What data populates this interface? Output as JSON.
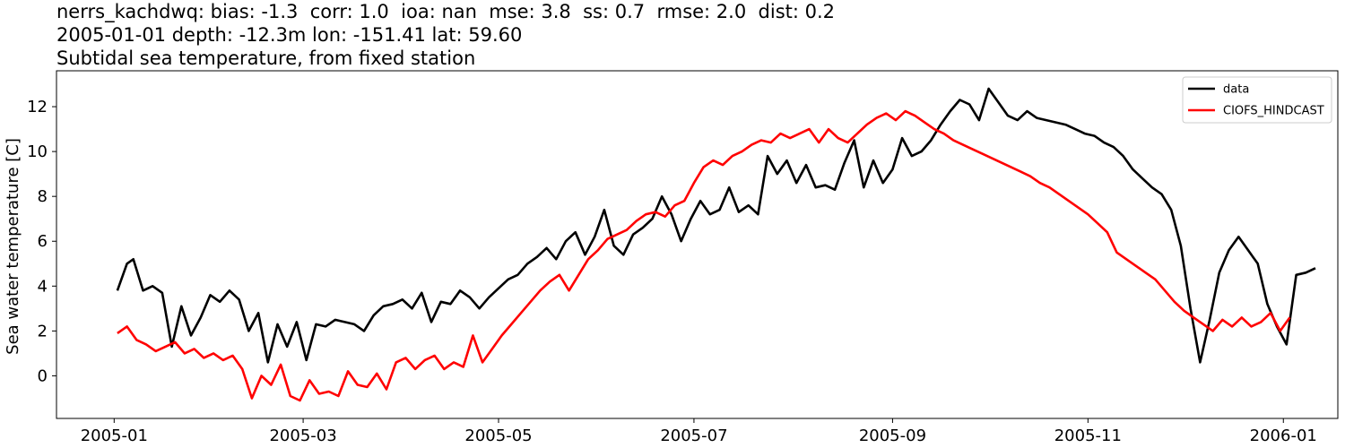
{
  "header": {
    "title_line1": "nerrs_kachdwq: bias: -1.3  corr: 1.0  ioa: nan  mse: 3.8  ss: 0.7  rmse: 2.0  dist: 0.2",
    "title_line2": "2005-01-01 depth: -12.3m lon: -151.41 lat: 59.60",
    "title_line3": "Subtidal sea temperature, from fixed station"
  },
  "chart_data": {
    "type": "line",
    "ylabel": "Sea water temperature [C]",
    "xlabel": "",
    "x_is_date": true,
    "xlim": [
      "2004-12-14",
      "2006-01-18"
    ],
    "ylim": [
      -1.9,
      13.6
    ],
    "xticks": [
      "2005-01-01",
      "2005-03-01",
      "2005-05-01",
      "2005-07-01",
      "2005-09-01",
      "2005-11-01",
      "2006-01-01"
    ],
    "xtick_labels": [
      "2005-01",
      "2005-03",
      "2005-05",
      "2005-07",
      "2005-09",
      "2005-11",
      "2006-01"
    ],
    "yticks": [
      0,
      2,
      4,
      6,
      8,
      10,
      12
    ],
    "grid": false,
    "legend_position": "top-right",
    "series": [
      {
        "name": "data",
        "color": "#000000",
        "points": [
          [
            "2005-01-02",
            3.8
          ],
          [
            "2005-01-05",
            5.0
          ],
          [
            "2005-01-07",
            5.2
          ],
          [
            "2005-01-10",
            3.8
          ],
          [
            "2005-01-13",
            4.0
          ],
          [
            "2005-01-16",
            3.7
          ],
          [
            "2005-01-19",
            1.3
          ],
          [
            "2005-01-22",
            3.1
          ],
          [
            "2005-01-25",
            1.8
          ],
          [
            "2005-01-28",
            2.6
          ],
          [
            "2005-01-31",
            3.6
          ],
          [
            "2005-02-03",
            3.3
          ],
          [
            "2005-02-06",
            3.8
          ],
          [
            "2005-02-09",
            3.4
          ],
          [
            "2005-02-12",
            2.0
          ],
          [
            "2005-02-15",
            2.8
          ],
          [
            "2005-02-18",
            0.6
          ],
          [
            "2005-02-21",
            2.3
          ],
          [
            "2005-02-24",
            1.3
          ],
          [
            "2005-02-27",
            2.4
          ],
          [
            "2005-03-02",
            0.7
          ],
          [
            "2005-03-05",
            2.3
          ],
          [
            "2005-03-08",
            2.2
          ],
          [
            "2005-03-11",
            2.5
          ],
          [
            "2005-03-14",
            2.4
          ],
          [
            "2005-03-17",
            2.3
          ],
          [
            "2005-03-20",
            2.0
          ],
          [
            "2005-03-23",
            2.7
          ],
          [
            "2005-03-26",
            3.1
          ],
          [
            "2005-03-29",
            3.2
          ],
          [
            "2005-04-01",
            3.4
          ],
          [
            "2005-04-04",
            3.0
          ],
          [
            "2005-04-07",
            3.7
          ],
          [
            "2005-04-10",
            2.4
          ],
          [
            "2005-04-13",
            3.3
          ],
          [
            "2005-04-16",
            3.2
          ],
          [
            "2005-04-19",
            3.8
          ],
          [
            "2005-04-22",
            3.5
          ],
          [
            "2005-04-25",
            3.0
          ],
          [
            "2005-04-28",
            3.5
          ],
          [
            "2005-05-01",
            3.9
          ],
          [
            "2005-05-04",
            4.3
          ],
          [
            "2005-05-07",
            4.5
          ],
          [
            "2005-05-10",
            5.0
          ],
          [
            "2005-05-13",
            5.3
          ],
          [
            "2005-05-16",
            5.7
          ],
          [
            "2005-05-19",
            5.2
          ],
          [
            "2005-05-22",
            6.0
          ],
          [
            "2005-05-25",
            6.4
          ],
          [
            "2005-05-28",
            5.4
          ],
          [
            "2005-05-31",
            6.2
          ],
          [
            "2005-06-03",
            7.4
          ],
          [
            "2005-06-06",
            5.8
          ],
          [
            "2005-06-09",
            5.4
          ],
          [
            "2005-06-12",
            6.3
          ],
          [
            "2005-06-15",
            6.6
          ],
          [
            "2005-06-18",
            7.0
          ],
          [
            "2005-06-21",
            8.0
          ],
          [
            "2005-06-24",
            7.2
          ],
          [
            "2005-06-27",
            6.0
          ],
          [
            "2005-06-30",
            7.0
          ],
          [
            "2005-07-03",
            7.8
          ],
          [
            "2005-07-06",
            7.2
          ],
          [
            "2005-07-09",
            7.4
          ],
          [
            "2005-07-12",
            8.4
          ],
          [
            "2005-07-15",
            7.3
          ],
          [
            "2005-07-18",
            7.6
          ],
          [
            "2005-07-21",
            7.2
          ],
          [
            "2005-07-24",
            9.8
          ],
          [
            "2005-07-27",
            9.0
          ],
          [
            "2005-07-30",
            9.6
          ],
          [
            "2005-08-02",
            8.6
          ],
          [
            "2005-08-05",
            9.4
          ],
          [
            "2005-08-08",
            8.4
          ],
          [
            "2005-08-11",
            8.5
          ],
          [
            "2005-08-14",
            8.3
          ],
          [
            "2005-08-17",
            9.5
          ],
          [
            "2005-08-20",
            10.5
          ],
          [
            "2005-08-23",
            8.4
          ],
          [
            "2005-08-26",
            9.6
          ],
          [
            "2005-08-29",
            8.6
          ],
          [
            "2005-09-01",
            9.2
          ],
          [
            "2005-09-04",
            10.6
          ],
          [
            "2005-09-07",
            9.8
          ],
          [
            "2005-09-10",
            10.0
          ],
          [
            "2005-09-13",
            10.5
          ],
          [
            "2005-09-16",
            11.2
          ],
          [
            "2005-09-19",
            11.8
          ],
          [
            "2005-09-22",
            12.3
          ],
          [
            "2005-09-25",
            12.1
          ],
          [
            "2005-09-28",
            11.4
          ],
          [
            "2005-10-01",
            12.8
          ],
          [
            "2005-10-04",
            12.2
          ],
          [
            "2005-10-07",
            11.6
          ],
          [
            "2005-10-10",
            11.4
          ],
          [
            "2005-10-13",
            11.8
          ],
          [
            "2005-10-16",
            11.5
          ],
          [
            "2005-10-19",
            11.4
          ],
          [
            "2005-10-22",
            11.3
          ],
          [
            "2005-10-25",
            11.2
          ],
          [
            "2005-10-28",
            11.0
          ],
          [
            "2005-10-31",
            10.8
          ],
          [
            "2005-11-03",
            10.7
          ],
          [
            "2005-11-06",
            10.4
          ],
          [
            "2005-11-09",
            10.2
          ],
          [
            "2005-11-12",
            9.8
          ],
          [
            "2005-11-15",
            9.2
          ],
          [
            "2005-11-18",
            8.8
          ],
          [
            "2005-11-21",
            8.4
          ],
          [
            "2005-11-24",
            8.1
          ],
          [
            "2005-11-27",
            7.4
          ],
          [
            "2005-11-30",
            5.8
          ],
          [
            "2005-12-03",
            3.0
          ],
          [
            "2005-12-06",
            0.6
          ],
          [
            "2005-12-09",
            2.5
          ],
          [
            "2005-12-12",
            4.6
          ],
          [
            "2005-12-15",
            5.6
          ],
          [
            "2005-12-18",
            6.2
          ],
          [
            "2005-12-21",
            5.6
          ],
          [
            "2005-12-24",
            5.0
          ],
          [
            "2005-12-27",
            3.2
          ],
          [
            "2005-12-30",
            2.2
          ],
          [
            "2006-01-02",
            1.4
          ],
          [
            "2006-01-05",
            4.5
          ],
          [
            "2006-01-08",
            4.6
          ],
          [
            "2006-01-11",
            4.8
          ]
        ]
      },
      {
        "name": "CIOFS_HINDCAST",
        "color": "#ff0000",
        "points": [
          [
            "2005-01-02",
            1.9
          ],
          [
            "2005-01-05",
            2.2
          ],
          [
            "2005-01-08",
            1.6
          ],
          [
            "2005-01-11",
            1.4
          ],
          [
            "2005-01-14",
            1.1
          ],
          [
            "2005-01-17",
            1.3
          ],
          [
            "2005-01-20",
            1.5
          ],
          [
            "2005-01-23",
            1.0
          ],
          [
            "2005-01-26",
            1.2
          ],
          [
            "2005-01-29",
            0.8
          ],
          [
            "2005-02-01",
            1.0
          ],
          [
            "2005-02-04",
            0.7
          ],
          [
            "2005-02-07",
            0.9
          ],
          [
            "2005-02-10",
            0.3
          ],
          [
            "2005-02-13",
            -1.0
          ],
          [
            "2005-02-16",
            0.0
          ],
          [
            "2005-02-19",
            -0.4
          ],
          [
            "2005-02-22",
            0.5
          ],
          [
            "2005-02-25",
            -0.9
          ],
          [
            "2005-02-28",
            -1.1
          ],
          [
            "2005-03-03",
            -0.2
          ],
          [
            "2005-03-06",
            -0.8
          ],
          [
            "2005-03-09",
            -0.7
          ],
          [
            "2005-03-12",
            -0.9
          ],
          [
            "2005-03-15",
            0.2
          ],
          [
            "2005-03-18",
            -0.4
          ],
          [
            "2005-03-21",
            -0.5
          ],
          [
            "2005-03-24",
            0.1
          ],
          [
            "2005-03-27",
            -0.6
          ],
          [
            "2005-03-30",
            0.6
          ],
          [
            "2005-04-02",
            0.8
          ],
          [
            "2005-04-05",
            0.3
          ],
          [
            "2005-04-08",
            0.7
          ],
          [
            "2005-04-11",
            0.9
          ],
          [
            "2005-04-14",
            0.3
          ],
          [
            "2005-04-17",
            0.6
          ],
          [
            "2005-04-20",
            0.4
          ],
          [
            "2005-04-23",
            1.8
          ],
          [
            "2005-04-26",
            0.6
          ],
          [
            "2005-04-29",
            1.2
          ],
          [
            "2005-05-02",
            1.8
          ],
          [
            "2005-05-05",
            2.3
          ],
          [
            "2005-05-08",
            2.8
          ],
          [
            "2005-05-11",
            3.3
          ],
          [
            "2005-05-14",
            3.8
          ],
          [
            "2005-05-17",
            4.2
          ],
          [
            "2005-05-20",
            4.5
          ],
          [
            "2005-05-23",
            3.8
          ],
          [
            "2005-05-26",
            4.5
          ],
          [
            "2005-05-29",
            5.2
          ],
          [
            "2005-06-01",
            5.6
          ],
          [
            "2005-06-04",
            6.1
          ],
          [
            "2005-06-07",
            6.3
          ],
          [
            "2005-06-10",
            6.5
          ],
          [
            "2005-06-13",
            6.9
          ],
          [
            "2005-06-16",
            7.2
          ],
          [
            "2005-06-19",
            7.3
          ],
          [
            "2005-06-22",
            7.1
          ],
          [
            "2005-06-25",
            7.6
          ],
          [
            "2005-06-28",
            7.8
          ],
          [
            "2005-07-01",
            8.6
          ],
          [
            "2005-07-04",
            9.3
          ],
          [
            "2005-07-07",
            9.6
          ],
          [
            "2005-07-10",
            9.4
          ],
          [
            "2005-07-13",
            9.8
          ],
          [
            "2005-07-16",
            10.0
          ],
          [
            "2005-07-19",
            10.3
          ],
          [
            "2005-07-22",
            10.5
          ],
          [
            "2005-07-25",
            10.4
          ],
          [
            "2005-07-28",
            10.8
          ],
          [
            "2005-07-31",
            10.6
          ],
          [
            "2005-08-03",
            10.8
          ],
          [
            "2005-08-06",
            11.0
          ],
          [
            "2005-08-09",
            10.4
          ],
          [
            "2005-08-12",
            11.0
          ],
          [
            "2005-08-15",
            10.6
          ],
          [
            "2005-08-18",
            10.4
          ],
          [
            "2005-08-21",
            10.8
          ],
          [
            "2005-08-24",
            11.2
          ],
          [
            "2005-08-27",
            11.5
          ],
          [
            "2005-08-30",
            11.7
          ],
          [
            "2005-09-02",
            11.4
          ],
          [
            "2005-09-05",
            11.8
          ],
          [
            "2005-09-08",
            11.6
          ],
          [
            "2005-09-11",
            11.3
          ],
          [
            "2005-09-14",
            11.0
          ],
          [
            "2005-09-17",
            10.8
          ],
          [
            "2005-09-20",
            10.5
          ],
          [
            "2005-09-23",
            10.3
          ],
          [
            "2005-09-26",
            10.1
          ],
          [
            "2005-09-29",
            9.9
          ],
          [
            "2005-10-02",
            9.7
          ],
          [
            "2005-10-05",
            9.5
          ],
          [
            "2005-10-08",
            9.3
          ],
          [
            "2005-10-11",
            9.1
          ],
          [
            "2005-10-14",
            8.9
          ],
          [
            "2005-10-17",
            8.6
          ],
          [
            "2005-10-20",
            8.4
          ],
          [
            "2005-10-23",
            8.1
          ],
          [
            "2005-10-26",
            7.8
          ],
          [
            "2005-10-29",
            7.5
          ],
          [
            "2005-11-01",
            7.2
          ],
          [
            "2005-11-04",
            6.8
          ],
          [
            "2005-11-07",
            6.4
          ],
          [
            "2005-11-10",
            5.5
          ],
          [
            "2005-11-13",
            5.2
          ],
          [
            "2005-11-16",
            4.9
          ],
          [
            "2005-11-19",
            4.6
          ],
          [
            "2005-11-22",
            4.3
          ],
          [
            "2005-11-25",
            3.8
          ],
          [
            "2005-11-28",
            3.3
          ],
          [
            "2005-12-01",
            2.9
          ],
          [
            "2005-12-04",
            2.6
          ],
          [
            "2005-12-07",
            2.3
          ],
          [
            "2005-12-10",
            2.0
          ],
          [
            "2005-12-13",
            2.5
          ],
          [
            "2005-12-16",
            2.2
          ],
          [
            "2005-12-19",
            2.6
          ],
          [
            "2005-12-22",
            2.2
          ],
          [
            "2005-12-25",
            2.4
          ],
          [
            "2005-12-28",
            2.8
          ],
          [
            "2005-12-31",
            2.0
          ],
          [
            "2006-01-03",
            2.6
          ]
        ]
      }
    ]
  }
}
